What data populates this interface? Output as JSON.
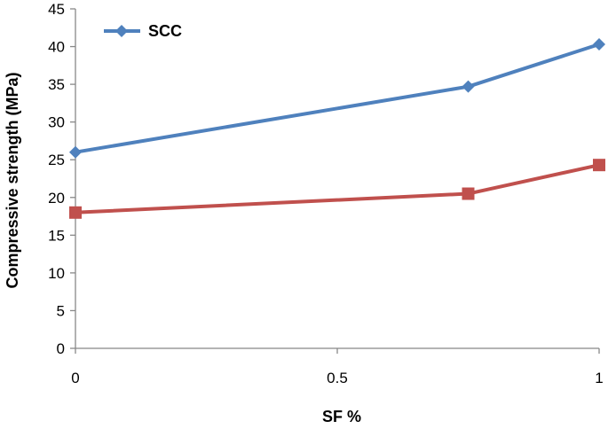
{
  "chart_data": {
    "type": "line",
    "title": "",
    "xlabel": "SF %",
    "ylabel": "Compressive strength (MPa)",
    "xlim": [
      0,
      1
    ],
    "ylim": [
      0,
      45
    ],
    "x_ticks": [
      "0",
      "0.5",
      "1"
    ],
    "y_ticks": [
      "0",
      "5",
      "10",
      "15",
      "20",
      "25",
      "30",
      "35",
      "40",
      "45"
    ],
    "grid": false,
    "legend_position": "top-left",
    "series": [
      {
        "name": "SCC",
        "color": "#4f81bd",
        "marker": "diamond",
        "points": [
          {
            "x": 0,
            "y": 26
          },
          {
            "x": 0.75,
            "y": 34.7
          },
          {
            "x": 1,
            "y": 40.3
          }
        ]
      },
      {
        "color": "#c0504d",
        "marker": "square",
        "points": [
          {
            "x": 0,
            "y": 18
          },
          {
            "x": 0.75,
            "y": 20.5
          },
          {
            "x": 1,
            "y": 24.3
          }
        ]
      }
    ]
  }
}
